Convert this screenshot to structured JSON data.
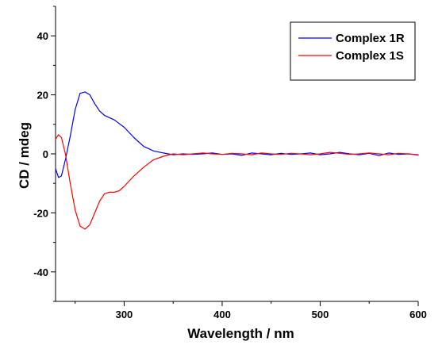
{
  "chart_data": {
    "type": "line",
    "title": "",
    "xlabel": "Wavelength / nm",
    "ylabel": "CD / mdeg",
    "xlim": [
      230,
      600
    ],
    "ylim": [
      -50,
      50
    ],
    "x_ticks": [
      300,
      400,
      500,
      600
    ],
    "y_ticks": [
      40,
      20,
      0,
      -20,
      -40
    ],
    "grid": false,
    "legend_position": "top-right",
    "series": [
      {
        "name": "Complex 1R",
        "color": "#0000ff",
        "x": [
          230,
          233,
          236,
          240,
          245,
          250,
          255,
          260,
          265,
          270,
          275,
          280,
          290,
          300,
          310,
          320,
          330,
          340,
          350,
          360,
          370,
          380,
          390,
          400,
          410,
          420,
          430,
          440,
          450,
          460,
          470,
          480,
          490,
          500,
          510,
          520,
          530,
          540,
          550,
          560,
          570,
          580,
          590,
          600
        ],
        "y": [
          -5,
          -8,
          -7.5,
          -2,
          6,
          15,
          20.5,
          21,
          20,
          17,
          14.5,
          13,
          11.5,
          9,
          5.5,
          2.5,
          1,
          0.3,
          -0.3,
          0,
          -0.2,
          0,
          0.3,
          -0.2,
          0,
          -0.5,
          0.3,
          0,
          -0.3,
          0.2,
          -0.2,
          0,
          0.3,
          -0.3,
          0,
          0.5,
          0,
          -0.3,
          0.2,
          -0.6,
          0.3,
          -0.2,
          0,
          -0.4
        ]
      },
      {
        "name": "Complex 1S",
        "color": "#ff0000",
        "x": [
          230,
          233,
          236,
          240,
          245,
          250,
          255,
          260,
          265,
          270,
          275,
          280,
          285,
          290,
          295,
          300,
          310,
          320,
          330,
          340,
          350,
          360,
          370,
          380,
          390,
          400,
          410,
          420,
          430,
          440,
          450,
          460,
          470,
          480,
          490,
          500,
          510,
          520,
          530,
          540,
          550,
          560,
          570,
          580,
          590,
          600
        ],
        "y": [
          5,
          6.5,
          5.5,
          0,
          -10,
          -19,
          -24.5,
          -25.5,
          -24,
          -20,
          -16,
          -13.5,
          -13,
          -13,
          -12.5,
          -11,
          -7.5,
          -4.5,
          -2,
          -0.8,
          0,
          -0.3,
          0,
          0.3,
          0,
          -0.2,
          0.2,
          0,
          -0.3,
          0.3,
          0,
          -0.2,
          0.2,
          0,
          -0.3,
          0,
          0.5,
          0.2,
          -0.2,
          0,
          0.3,
          0,
          -0.3,
          0.2,
          0,
          -0.3
        ]
      }
    ]
  }
}
